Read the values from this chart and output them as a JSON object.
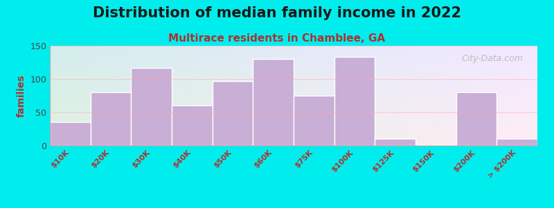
{
  "title": "Distribution of median family income in 2022",
  "subtitle": "Multirace residents in Chamblee, GA",
  "ylabel": "families",
  "categories": [
    "$10K",
    "$20K",
    "$30K",
    "$40K",
    "$50K",
    "$60K",
    "$75K",
    "$100K",
    "$125K",
    "$150K",
    "$200K",
    "> $200K"
  ],
  "values": [
    35,
    80,
    117,
    60,
    97,
    130,
    75,
    133,
    10,
    0,
    80,
    10
  ],
  "bar_color": "#c9aed6",
  "bar_edge_color": "#ffffff",
  "background_outer": "#00eded",
  "background_inner_top_left": "#dff0d8",
  "background_inner_top_right": "#f0f8f0",
  "background_inner_bottom": "#cce8f0",
  "title_color": "#1a1a1a",
  "subtitle_color": "#b03030",
  "ylabel_color": "#b03030",
  "tick_label_color": "#b03030",
  "ytick_label_color": "#444444",
  "ylim": [
    0,
    150
  ],
  "yticks": [
    0,
    50,
    100,
    150
  ],
  "watermark": "City-Data.com",
  "title_fontsize": 15,
  "subtitle_fontsize": 11,
  "ylabel_fontsize": 10
}
